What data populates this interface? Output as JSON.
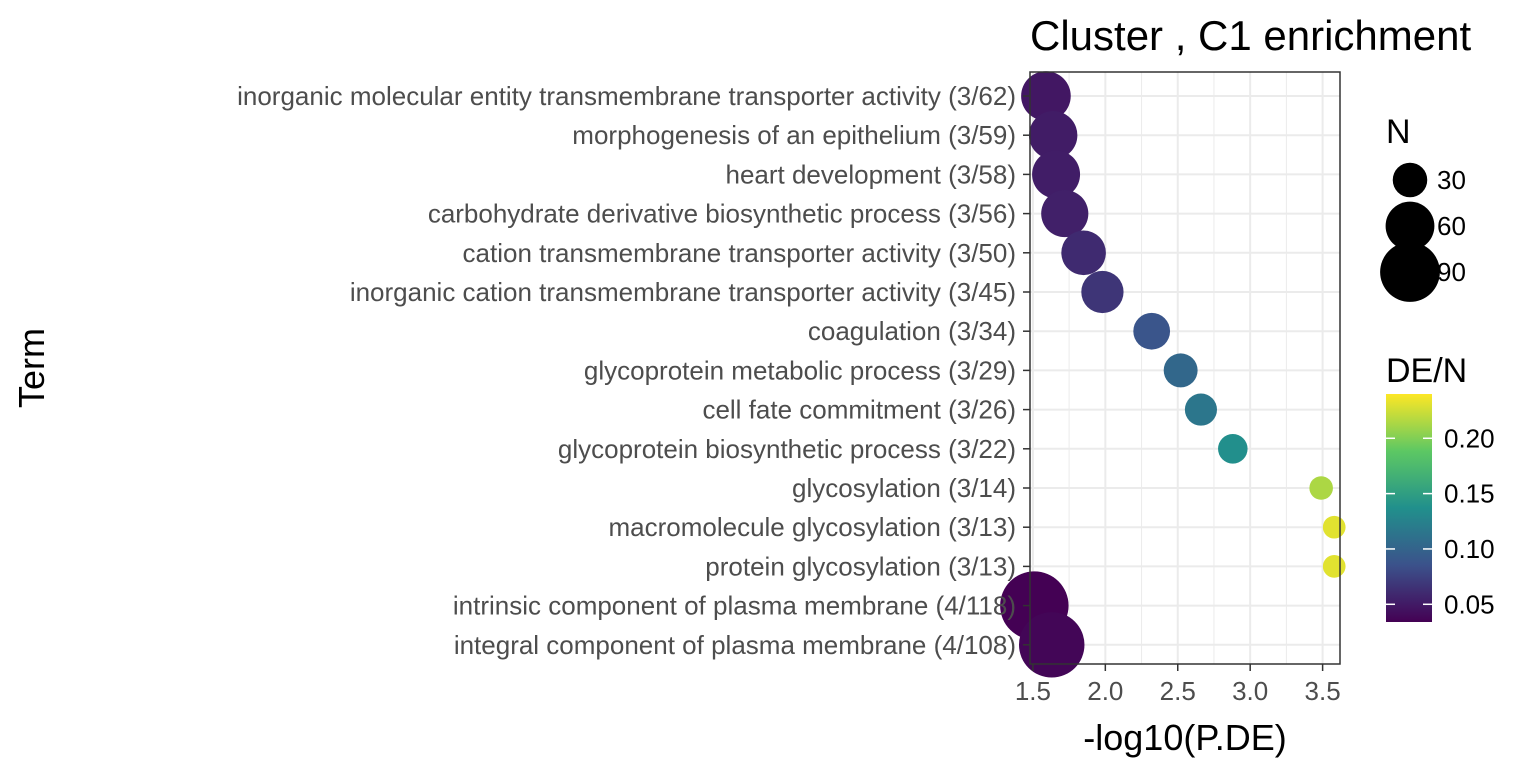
{
  "chart_data": {
    "type": "scatter",
    "title": "Cluster , C1 enrichment",
    "xlabel": "-log10(P.DE)",
    "ylabel": "Term",
    "xlim": [
      1.48,
      3.62
    ],
    "x_ticks": [
      "1.5",
      "2.0",
      "2.5",
      "3.0",
      "3.5"
    ],
    "grid": true,
    "points": [
      {
        "term": "inorganic molecular entity transmembrane transporter activity (3/62)",
        "x": 1.59,
        "N": 62,
        "de_ratio": 0.048
      },
      {
        "term": "morphogenesis of an epithelium (3/59)",
        "x": 1.64,
        "N": 59,
        "de_ratio": 0.051
      },
      {
        "term": "heart development (3/58)",
        "x": 1.66,
        "N": 58,
        "de_ratio": 0.052
      },
      {
        "term": "carbohydrate derivative biosynthetic process (3/56)",
        "x": 1.72,
        "N": 56,
        "de_ratio": 0.054
      },
      {
        "term": "cation transmembrane transporter activity (3/50)",
        "x": 1.85,
        "N": 50,
        "de_ratio": 0.06
      },
      {
        "term": "inorganic cation transmembrane transporter activity (3/45)",
        "x": 1.98,
        "N": 45,
        "de_ratio": 0.067
      },
      {
        "term": "coagulation (3/34)",
        "x": 2.32,
        "N": 34,
        "de_ratio": 0.088
      },
      {
        "term": "glycoprotein metabolic process (3/29)",
        "x": 2.52,
        "N": 29,
        "de_ratio": 0.103
      },
      {
        "term": "cell fate commitment (3/26)",
        "x": 2.66,
        "N": 26,
        "de_ratio": 0.115
      },
      {
        "term": "glycoprotein biosynthetic process (3/22)",
        "x": 2.88,
        "N": 22,
        "de_ratio": 0.136
      },
      {
        "term": "glycosylation (3/14)",
        "x": 3.49,
        "N": 14,
        "de_ratio": 0.214
      },
      {
        "term": "macromolecule glycosylation (3/13)",
        "x": 3.58,
        "N": 13,
        "de_ratio": 0.231
      },
      {
        "term": "protein glycosylation (3/13)",
        "x": 3.58,
        "N": 13,
        "de_ratio": 0.231
      },
      {
        "term": "intrinsic component of plasma membrane (4/118)",
        "x": 1.51,
        "N": 118,
        "de_ratio": 0.034
      },
      {
        "term": "integral component of plasma membrane (4/108)",
        "x": 1.63,
        "N": 108,
        "de_ratio": 0.037
      }
    ],
    "legend_size": {
      "title": "N",
      "entries": [
        {
          "label": "30",
          "value": 30
        },
        {
          "label": "60",
          "value": 60
        },
        {
          "label": "90",
          "value": 90
        }
      ]
    },
    "legend_color": {
      "title": "DE/N",
      "range": [
        0.034,
        0.24
      ],
      "ticks": [
        {
          "label": "0.05",
          "value": 0.05
        },
        {
          "label": "0.10",
          "value": 0.1
        },
        {
          "label": "0.15",
          "value": 0.15
        },
        {
          "label": "0.20",
          "value": 0.2
        }
      ],
      "palette": [
        "#440154",
        "#3b528b",
        "#21908c",
        "#5dc863",
        "#fde725"
      ]
    },
    "colors": {
      "grid": "#ebebeb",
      "panel_border": "#333333",
      "tick_text": "#4d4d4d"
    }
  }
}
